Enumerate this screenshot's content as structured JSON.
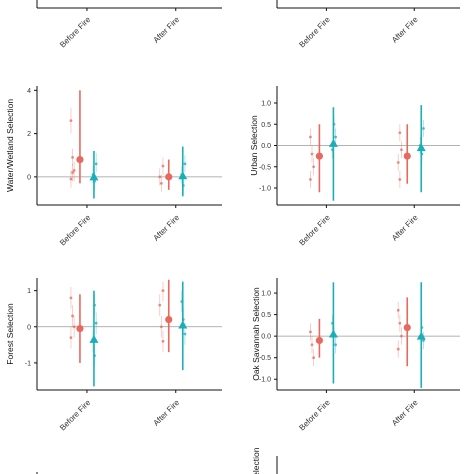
{
  "colors": {
    "series_a": "#e8685e",
    "series_b": "#1aafb8",
    "zero_line": "#999999",
    "axis": "#111111"
  },
  "chart_data": [
    {
      "type": "scatter",
      "panel": "top-left-partial",
      "ylabel": "",
      "categories": [
        "Before Fire",
        "After Fire"
      ],
      "ylim": [
        -2,
        0.05
      ],
      "yticks": [],
      "show_zero_line": false,
      "series": [
        {
          "marker": "circle",
          "points": [],
          "intervals": []
        },
        {
          "marker": "triangle",
          "points": [],
          "intervals": [
            {
              "cat": 1,
              "lo": -0.3,
              "hi": 0.05
            }
          ]
        }
      ],
      "individuals": []
    },
    {
      "type": "scatter",
      "panel": "top-right-partial",
      "ylabel": "",
      "categories": [
        "Before Fire",
        "After Fire"
      ],
      "ylim": [
        -2,
        0.05
      ],
      "yticks": [],
      "show_zero_line": false,
      "series": [
        {
          "marker": "circle",
          "points": [],
          "intervals": []
        },
        {
          "marker": "triangle",
          "points": [],
          "intervals": []
        }
      ],
      "individuals": []
    },
    {
      "type": "scatter",
      "panel": "water-wetland",
      "ylabel": "Water/Wetland Selection",
      "categories": [
        "Before Fire",
        "After Fire"
      ],
      "ylim": [
        -1.3,
        4.2
      ],
      "yticks": [
        0,
        2,
        4
      ],
      "series": [
        {
          "marker": "circle",
          "points": [
            0.8,
            0.0
          ],
          "intervals": [
            {
              "lo": -0.3,
              "hi": 4.0
            },
            {
              "lo": -0.6,
              "hi": 0.8
            }
          ]
        },
        {
          "marker": "triangle",
          "points": [
            0.0,
            0.05
          ],
          "intervals": [
            {
              "lo": -1.0,
              "hi": 1.2
            },
            {
              "lo": -0.9,
              "hi": 1.4
            }
          ]
        }
      ],
      "individuals": [
        {
          "cat": 0,
          "s": 0,
          "y": 2.6,
          "lo": 2.0,
          "hi": 3.2
        },
        {
          "cat": 0,
          "s": 0,
          "y": 0.9,
          "lo": 0.5,
          "hi": 1.3
        },
        {
          "cat": 0,
          "s": 0,
          "y": 0.3,
          "lo": -0.2,
          "hi": 0.7
        },
        {
          "cat": 0,
          "s": 0,
          "y": -0.1,
          "lo": -0.5,
          "hi": 0.3
        },
        {
          "cat": 0,
          "s": 0,
          "y": 0.2,
          "lo": -0.2,
          "hi": 0.6
        },
        {
          "cat": 0,
          "s": 1,
          "y": 0.6,
          "lo": 0.2,
          "hi": 1.1
        },
        {
          "cat": 0,
          "s": 1,
          "y": 0.1,
          "lo": -0.3,
          "hi": 0.5
        },
        {
          "cat": 0,
          "s": 1,
          "y": -0.2,
          "lo": -0.6,
          "hi": 0.2
        },
        {
          "cat": 1,
          "s": 0,
          "y": 0.5,
          "lo": 0.1,
          "hi": 0.9
        },
        {
          "cat": 1,
          "s": 0,
          "y": 0.0,
          "lo": -0.4,
          "hi": 0.4
        },
        {
          "cat": 1,
          "s": 0,
          "y": -0.3,
          "lo": -0.7,
          "hi": 0.1
        },
        {
          "cat": 1,
          "s": 1,
          "y": 0.6,
          "lo": 0.2,
          "hi": 1.0
        },
        {
          "cat": 1,
          "s": 1,
          "y": 0.1,
          "lo": -0.3,
          "hi": 0.5
        },
        {
          "cat": 1,
          "s": 1,
          "y": -0.4,
          "lo": -0.8,
          "hi": 0.0
        }
      ]
    },
    {
      "type": "scatter",
      "panel": "urban",
      "ylabel": "Urban Selection",
      "categories": [
        "Before Fire",
        "After Fire"
      ],
      "ylim": [
        -1.4,
        1.4
      ],
      "yticks": [
        -1.0,
        -0.5,
        0.0,
        0.5,
        1.0
      ],
      "series": [
        {
          "marker": "circle",
          "points": [
            -0.25,
            -0.25
          ],
          "intervals": [
            {
              "lo": -1.1,
              "hi": 0.5
            },
            {
              "lo": -0.9,
              "hi": 0.5
            }
          ]
        },
        {
          "marker": "triangle",
          "points": [
            0.05,
            -0.05
          ],
          "intervals": [
            {
              "lo": -1.3,
              "hi": 0.9
            },
            {
              "lo": -1.1,
              "hi": 0.95
            }
          ]
        }
      ],
      "individuals": [
        {
          "cat": 0,
          "s": 0,
          "y": 0.2,
          "lo": 0.0,
          "hi": 0.4
        },
        {
          "cat": 0,
          "s": 0,
          "y": -0.2,
          "lo": -0.4,
          "hi": 0.0
        },
        {
          "cat": 0,
          "s": 0,
          "y": -0.5,
          "lo": -0.7,
          "hi": -0.3
        },
        {
          "cat": 0,
          "s": 0,
          "y": -0.8,
          "lo": -1.0,
          "hi": -0.6
        },
        {
          "cat": 0,
          "s": 1,
          "y": 0.5,
          "lo": 0.3,
          "hi": 0.7
        },
        {
          "cat": 0,
          "s": 1,
          "y": 0.2,
          "lo": 0.0,
          "hi": 0.4
        },
        {
          "cat": 0,
          "s": 1,
          "y": -0.1,
          "lo": -0.3,
          "hi": 0.1
        },
        {
          "cat": 1,
          "s": 0,
          "y": 0.3,
          "lo": 0.1,
          "hi": 0.5
        },
        {
          "cat": 1,
          "s": 0,
          "y": -0.1,
          "lo": -0.3,
          "hi": 0.1
        },
        {
          "cat": 1,
          "s": 0,
          "y": -0.4,
          "lo": -0.6,
          "hi": -0.2
        },
        {
          "cat": 1,
          "s": 0,
          "y": -0.8,
          "lo": -1.0,
          "hi": -0.6
        },
        {
          "cat": 1,
          "s": 1,
          "y": 0.4,
          "lo": 0.2,
          "hi": 0.6
        },
        {
          "cat": 1,
          "s": 1,
          "y": 0.0,
          "lo": -0.2,
          "hi": 0.2
        },
        {
          "cat": 1,
          "s": 1,
          "y": -0.2,
          "lo": -0.4,
          "hi": 0.0
        }
      ]
    },
    {
      "type": "scatter",
      "panel": "forest",
      "ylabel": "Forest Selection",
      "categories": [
        "Before Fire",
        "After Fire"
      ],
      "ylim": [
        -1.75,
        1.35
      ],
      "yticks": [
        -1,
        0,
        1
      ],
      "series": [
        {
          "marker": "circle",
          "points": [
            -0.05,
            0.2
          ],
          "intervals": [
            {
              "lo": -1.0,
              "hi": 0.9
            },
            {
              "lo": -0.7,
              "hi": 1.3
            }
          ]
        },
        {
          "marker": "triangle",
          "points": [
            -0.35,
            0.05
          ],
          "intervals": [
            {
              "lo": -1.65,
              "hi": 1.0
            },
            {
              "lo": -1.2,
              "hi": 1.25
            }
          ]
        }
      ],
      "individuals": [
        {
          "cat": 0,
          "s": 0,
          "y": 0.8,
          "lo": 0.5,
          "hi": 1.1
        },
        {
          "cat": 0,
          "s": 0,
          "y": 0.3,
          "lo": 0.0,
          "hi": 0.6
        },
        {
          "cat": 0,
          "s": 0,
          "y": 0.0,
          "lo": -0.3,
          "hi": 0.3
        },
        {
          "cat": 0,
          "s": 0,
          "y": -0.3,
          "lo": -0.6,
          "hi": 0.0
        },
        {
          "cat": 0,
          "s": 1,
          "y": 0.6,
          "lo": 0.3,
          "hi": 0.9
        },
        {
          "cat": 0,
          "s": 1,
          "y": 0.1,
          "lo": -0.2,
          "hi": 0.4
        },
        {
          "cat": 0,
          "s": 1,
          "y": -0.4,
          "lo": -0.7,
          "hi": -0.1
        },
        {
          "cat": 0,
          "s": 1,
          "y": -0.8,
          "lo": -1.1,
          "hi": -0.5
        },
        {
          "cat": 1,
          "s": 0,
          "y": 1.0,
          "lo": 0.7,
          "hi": 1.25
        },
        {
          "cat": 1,
          "s": 0,
          "y": 0.6,
          "lo": 0.3,
          "hi": 0.9
        },
        {
          "cat": 1,
          "s": 0,
          "y": 0.0,
          "lo": -0.3,
          "hi": 0.3
        },
        {
          "cat": 1,
          "s": 0,
          "y": -0.4,
          "lo": -0.7,
          "hi": -0.1
        },
        {
          "cat": 1,
          "s": 1,
          "y": 0.7,
          "lo": 0.4,
          "hi": 1.0
        },
        {
          "cat": 1,
          "s": 1,
          "y": 0.2,
          "lo": -0.1,
          "hi": 0.5
        },
        {
          "cat": 1,
          "s": 1,
          "y": -0.2,
          "lo": -0.5,
          "hi": 0.1
        }
      ]
    },
    {
      "type": "scatter",
      "panel": "oak-savannah",
      "ylabel": "Oak Savannah Selection",
      "categories": [
        "Before Fire",
        "After Fire"
      ],
      "ylim": [
        -1.25,
        1.35
      ],
      "yticks": [
        -1.0,
        -0.5,
        0.0,
        0.5,
        1.0
      ],
      "series": [
        {
          "marker": "circle",
          "points": [
            -0.1,
            0.2
          ],
          "intervals": [
            {
              "lo": -0.5,
              "hi": 0.4
            },
            {
              "lo": -0.7,
              "hi": 0.9
            }
          ]
        },
        {
          "marker": "triangle",
          "points": [
            0.05,
            0.0
          ],
          "intervals": [
            {
              "lo": -1.1,
              "hi": 1.25
            },
            {
              "lo": -1.2,
              "hi": 1.25
            }
          ]
        }
      ],
      "individuals": [
        {
          "cat": 0,
          "s": 0,
          "y": 0.1,
          "lo": -0.1,
          "hi": 0.3
        },
        {
          "cat": 0,
          "s": 0,
          "y": -0.2,
          "lo": -0.4,
          "hi": 0.0
        },
        {
          "cat": 0,
          "s": 0,
          "y": -0.5,
          "lo": -0.7,
          "hi": -0.3
        },
        {
          "cat": 0,
          "s": 1,
          "y": 0.3,
          "lo": 0.1,
          "hi": 0.5
        },
        {
          "cat": 0,
          "s": 1,
          "y": 0.0,
          "lo": -0.2,
          "hi": 0.2
        },
        {
          "cat": 0,
          "s": 1,
          "y": -0.2,
          "lo": -0.4,
          "hi": 0.0
        },
        {
          "cat": 1,
          "s": 0,
          "y": 0.6,
          "lo": 0.4,
          "hi": 0.8
        },
        {
          "cat": 1,
          "s": 0,
          "y": 0.3,
          "lo": 0.1,
          "hi": 0.5
        },
        {
          "cat": 1,
          "s": 0,
          "y": 0.0,
          "lo": -0.2,
          "hi": 0.2
        },
        {
          "cat": 1,
          "s": 0,
          "y": -0.3,
          "lo": -0.5,
          "hi": -0.1
        },
        {
          "cat": 1,
          "s": 1,
          "y": 0.2,
          "lo": 0.0,
          "hi": 0.4
        },
        {
          "cat": 1,
          "s": 1,
          "y": -0.1,
          "lo": -0.3,
          "hi": 0.1
        }
      ]
    },
    {
      "type": "scatter",
      "panel": "bottom-left-partial",
      "ylabel": "",
      "categories": [],
      "ylim": [
        0,
        1
      ],
      "yticks": [],
      "show_zero_line": false,
      "series": [],
      "individuals": []
    },
    {
      "type": "scatter",
      "panel": "bottom-right-partial",
      "ylabel": "Selection",
      "categories": [],
      "ylim": [
        0,
        1
      ],
      "yticks": [],
      "show_zero_line": false,
      "series": [],
      "individuals": []
    }
  ]
}
